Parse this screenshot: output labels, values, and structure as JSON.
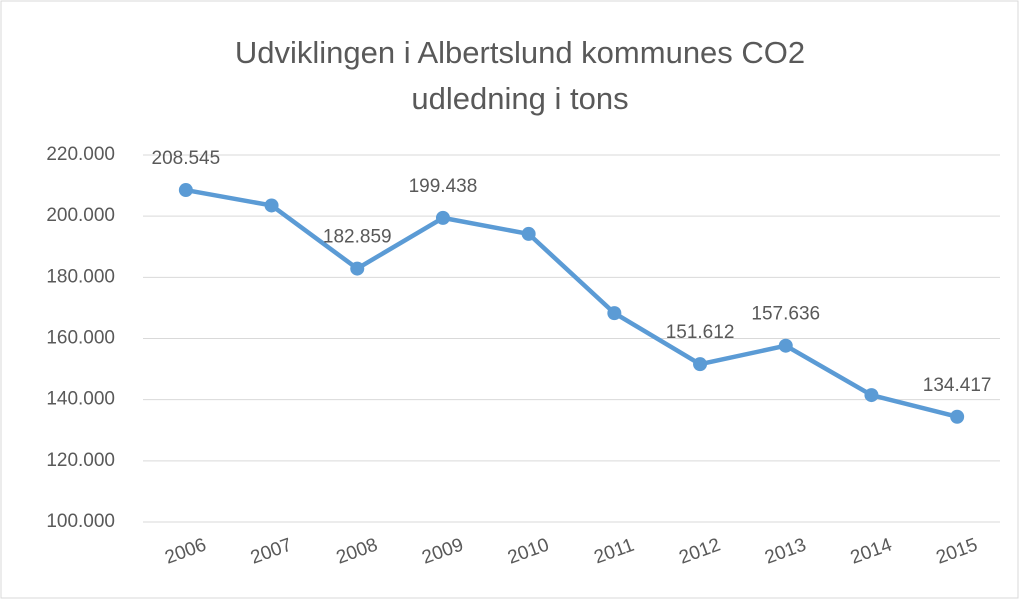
{
  "chart_data": {
    "type": "line",
    "title": [
      "Udviklingen i Albertslund kommunes CO2",
      "udledning i tons"
    ],
    "categories": [
      "2006",
      "2007",
      "2008",
      "2009",
      "2010",
      "2011",
      "2012",
      "2013",
      "2014",
      "2015"
    ],
    "series": [
      {
        "name": "CO2 udledning",
        "color": "#5b9bd5",
        "values": [
          208545,
          203500,
          182859,
          199438,
          194200,
          168300,
          151612,
          157636,
          141500,
          134417
        ],
        "value_labels": [
          "208.545",
          null,
          "182.859",
          "199.438",
          null,
          null,
          "151.612",
          "157.636",
          null,
          "134.417"
        ]
      }
    ],
    "ylim": [
      100000,
      220000
    ],
    "yticks": [
      {
        "value": 100000,
        "label": "100.000"
      },
      {
        "value": 120000,
        "label": "120.000"
      },
      {
        "value": 140000,
        "label": "140.000"
      },
      {
        "value": 160000,
        "label": "160.000"
      },
      {
        "value": 180000,
        "label": "180.000"
      },
      {
        "value": 200000,
        "label": "200.000"
      },
      {
        "value": 220000,
        "label": "220.000"
      }
    ],
    "grid": true
  }
}
